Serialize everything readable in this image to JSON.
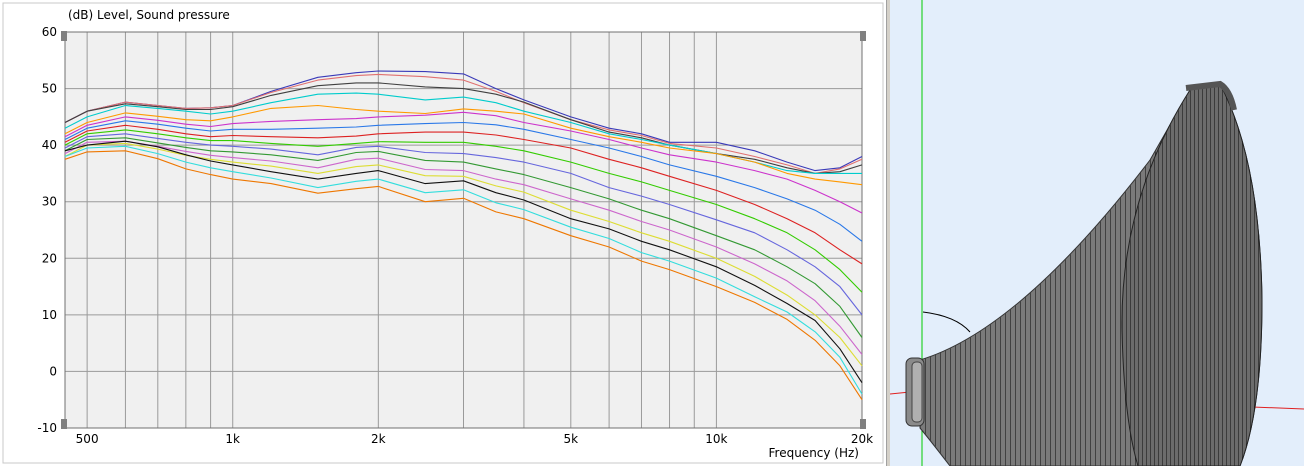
{
  "chart_data": {
    "type": "line",
    "title": "(dB)  Level, Sound pressure",
    "xlabel": "Frequency  (Hz)",
    "ylabel": "",
    "x_scale": "log",
    "xlim": [
      450,
      20000
    ],
    "ylim": [
      -10,
      60
    ],
    "x_ticks": [
      {
        "value": 500,
        "label": "500"
      },
      {
        "value": 1000,
        "label": "1k"
      },
      {
        "value": 2000,
        "label": "2k"
      },
      {
        "value": 5000,
        "label": "5k"
      },
      {
        "value": 10000,
        "label": "10k"
      },
      {
        "value": 20000,
        "label": "20k"
      }
    ],
    "y_ticks": [
      {
        "value": 60,
        "label": "60"
      },
      {
        "value": 50,
        "label": "50"
      },
      {
        "value": 40,
        "label": "40"
      },
      {
        "value": 30,
        "label": "30"
      },
      {
        "value": 20,
        "label": "20"
      },
      {
        "value": 10,
        "label": "10"
      },
      {
        "value": 0,
        "label": "0"
      },
      {
        "value": -10,
        "label": "-10"
      }
    ],
    "grid": true,
    "x": [
      450,
      500,
      600,
      700,
      800,
      900,
      1000,
      1200,
      1500,
      1800,
      2000,
      2500,
      3000,
      3500,
      4000,
      5000,
      6000,
      7000,
      8000,
      10000,
      12000,
      14000,
      16000,
      18000,
      20000
    ],
    "series": [
      {
        "color": "#3a3ab8",
        "values": [
          44,
          46,
          47.6,
          47,
          46.5,
          46.6,
          47,
          49.5,
          52,
          52.8,
          53.1,
          53,
          52.6,
          50,
          48,
          45,
          43,
          42,
          40.5,
          40.5,
          39,
          37,
          35.5,
          36,
          38
        ]
      },
      {
        "color": "#e07070",
        "values": [
          44,
          46,
          47.6,
          47,
          46.5,
          46.6,
          47,
          49.3,
          51.5,
          52.3,
          52.5,
          52.1,
          51.5,
          49.5,
          47.5,
          44.5,
          42.7,
          41.7,
          40.3,
          39.5,
          38,
          36.5,
          35,
          35.8,
          37.5
        ]
      },
      {
        "color": "#404040",
        "values": [
          44,
          46,
          47.3,
          46.8,
          46.3,
          46.3,
          46.8,
          48.8,
          50.5,
          51,
          51,
          50.3,
          50,
          49,
          47.6,
          44.5,
          42.3,
          41.3,
          40,
          38.5,
          37.5,
          36,
          35,
          35.3,
          36.5
        ]
      },
      {
        "color": "#00cccc",
        "values": [
          43,
          45,
          47,
          46.5,
          46,
          45.5,
          46,
          47.5,
          49,
          49.2,
          49,
          48,
          48.5,
          47.5,
          46,
          44,
          42,
          41,
          40,
          38.5,
          37,
          35.5,
          35,
          35,
          35
        ]
      },
      {
        "color": "#ff9900",
        "values": [
          42,
          44,
          45.7,
          45.1,
          44.5,
          44.3,
          45,
          46.5,
          47,
          46.3,
          46,
          45.6,
          46.4,
          46,
          45.5,
          43,
          41.5,
          40.5,
          39.5,
          38.5,
          37,
          35,
          34,
          33.5,
          33
        ]
      },
      {
        "color": "#cc33cc",
        "values": [
          41.5,
          43.5,
          45,
          44.4,
          43.7,
          43.3,
          43.8,
          44.2,
          44.5,
          44.7,
          45,
          45.3,
          45.8,
          45.2,
          44,
          42.5,
          41,
          39.5,
          38.3,
          37,
          35.5,
          34,
          32,
          30,
          28
        ]
      },
      {
        "color": "#2a78e8",
        "values": [
          41,
          43,
          44.3,
          43.7,
          43,
          42.5,
          42.8,
          42.8,
          43,
          43.2,
          43.5,
          43.8,
          44,
          43.6,
          42.8,
          41,
          39.5,
          38,
          36.5,
          34.5,
          32.5,
          30.5,
          28.5,
          26,
          23
        ]
      },
      {
        "color": "#dd2222",
        "values": [
          40.5,
          42.5,
          43.5,
          42.8,
          42,
          41.5,
          41.7,
          41.5,
          41.3,
          41.6,
          42,
          42.3,
          42.3,
          41.8,
          41,
          39.5,
          37.5,
          36,
          34.5,
          32,
          29.5,
          27,
          24.5,
          21.5,
          19
        ]
      },
      {
        "color": "#33cc00",
        "values": [
          40,
          42,
          42.7,
          42,
          41.3,
          40.8,
          40.8,
          40.3,
          39.8,
          40.3,
          40.6,
          40.5,
          40.5,
          39.8,
          39,
          37,
          35,
          33.5,
          32,
          29.5,
          27,
          24.5,
          21.5,
          18,
          14
        ]
      },
      {
        "color": "#6666dd",
        "values": [
          39.5,
          41.5,
          42,
          41.2,
          40.5,
          40,
          39.8,
          39.3,
          38.3,
          39.6,
          39.8,
          38.7,
          38.5,
          37.8,
          37,
          35,
          32.5,
          31,
          29.5,
          26.8,
          24.5,
          21.5,
          18.5,
          15,
          10
        ]
      },
      {
        "color": "#339933",
        "values": [
          39,
          41,
          41.3,
          40.4,
          39.6,
          39,
          38.8,
          38.3,
          37.3,
          38.7,
          38.9,
          37.3,
          37,
          35.8,
          34.8,
          32.5,
          30.5,
          28.5,
          27,
          24,
          21.5,
          18.5,
          15.5,
          11.5,
          6
        ]
      },
      {
        "color": "#cc66cc",
        "values": [
          38.5,
          40.5,
          40.7,
          39.8,
          38.9,
          38.2,
          37.8,
          37.2,
          36,
          37.5,
          37.7,
          35.7,
          35.5,
          34,
          33,
          30.5,
          28.5,
          26.5,
          25,
          22,
          19,
          16,
          12.5,
          8,
          3
        ]
      },
      {
        "color": "#dddd33",
        "values": [
          38,
          40,
          40.3,
          39.3,
          38.2,
          37.5,
          37,
          36.3,
          35,
          36.2,
          36.5,
          34.6,
          34.5,
          32.8,
          31.7,
          28.5,
          26.5,
          24.5,
          23,
          20,
          16.8,
          13.5,
          10,
          6,
          1
        ]
      },
      {
        "color": "#111111",
        "values": [
          39,
          40,
          40.7,
          39.7,
          38.3,
          37.2,
          36.5,
          35.3,
          34,
          35,
          35.5,
          33.2,
          33.7,
          31.6,
          30.3,
          27,
          25.2,
          23,
          21.5,
          18.5,
          15.2,
          12,
          9,
          4,
          -2
        ]
      },
      {
        "color": "#33dddd",
        "values": [
          38,
          39.5,
          39.8,
          38.5,
          37,
          36,
          35.3,
          34.2,
          32.5,
          33.6,
          34,
          31.6,
          32.1,
          29.8,
          28.6,
          25.5,
          23.5,
          21,
          19.5,
          16.5,
          13.2,
          10.5,
          7,
          2.5,
          -4
        ]
      },
      {
        "color": "#ee7700",
        "values": [
          37.5,
          38.8,
          39,
          37.6,
          35.8,
          34.8,
          34,
          33.2,
          31.5,
          32.3,
          32.7,
          30,
          30.6,
          28.2,
          27,
          24,
          22,
          19.5,
          18,
          15,
          12.2,
          9.2,
          5.5,
          1,
          -5
        ]
      }
    ]
  },
  "model_view": {
    "description_icon": "horn-3d-model-icon"
  }
}
